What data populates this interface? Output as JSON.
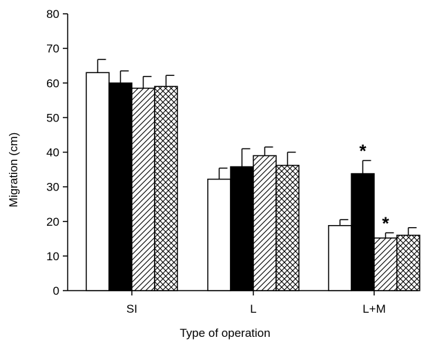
{
  "chart_data": {
    "type": "bar",
    "title": "",
    "xlabel": "Type of operation",
    "ylabel": "Migration (cm)",
    "ylim": [
      0,
      80
    ],
    "yticks": [
      "0",
      "10",
      "20",
      "30",
      "40",
      "50",
      "60",
      "70",
      "80"
    ],
    "categories": [
      "SI",
      "L",
      "L+M"
    ],
    "series": [
      {
        "fill": "white",
        "values": [
          63.0,
          32.2,
          18.8
        ],
        "errors": [
          3.8,
          3.2,
          1.7
        ]
      },
      {
        "fill": "black",
        "values": [
          60.0,
          35.8,
          33.8
        ],
        "errors": [
          3.5,
          5.2,
          3.8
        ]
      },
      {
        "fill": "diagonal-hatch",
        "values": [
          58.5,
          39.0,
          15.2
        ],
        "errors": [
          3.4,
          2.5,
          1.5
        ]
      },
      {
        "fill": "cross-hatch",
        "values": [
          59.0,
          36.2,
          16.0
        ],
        "errors": [
          3.2,
          3.8,
          2.2
        ]
      }
    ],
    "significance_marker": "*",
    "significance": [
      {
        "category_index": 2,
        "series_index": 1
      },
      {
        "category_index": 2,
        "series_index": 2
      }
    ],
    "grid": false,
    "legend": "none"
  }
}
